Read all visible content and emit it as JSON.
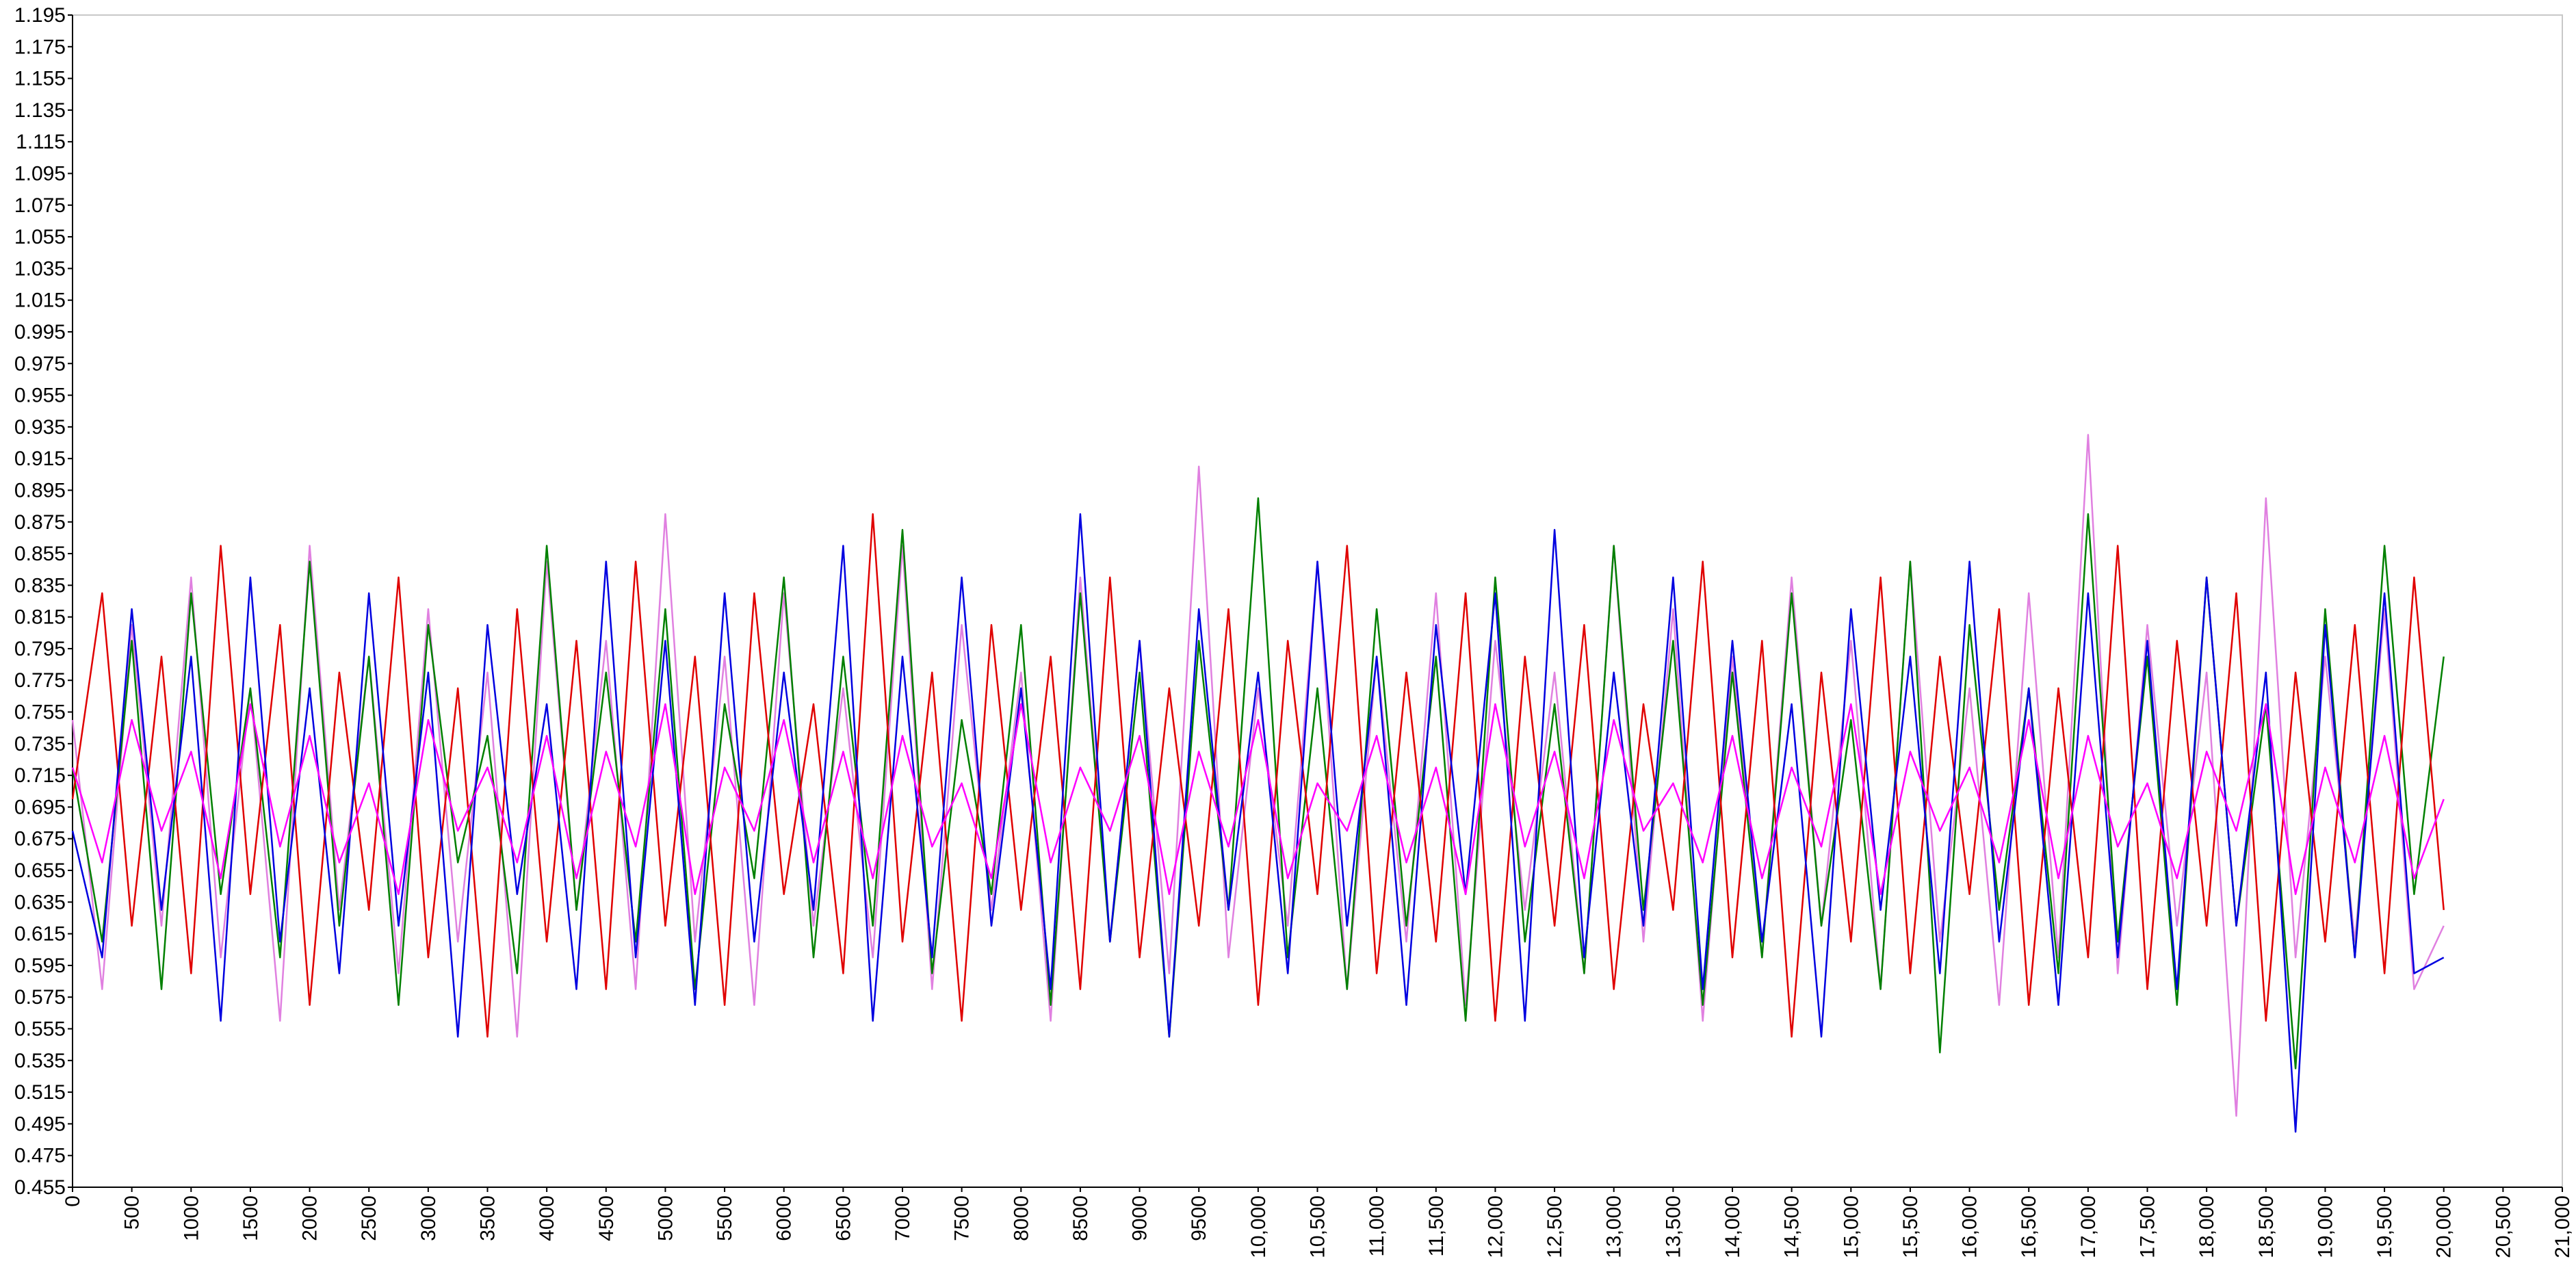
{
  "chart_data": {
    "type": "line",
    "x": [
      0,
      250,
      500,
      750,
      1000,
      1250,
      1500,
      1750,
      2000,
      2250,
      2500,
      2750,
      3000,
      3250,
      3500,
      3750,
      4000,
      4250,
      4500,
      4750,
      5000,
      5250,
      5500,
      5750,
      6000,
      6250,
      6500,
      6750,
      7000,
      7250,
      7500,
      7750,
      8000,
      8250,
      8500,
      8750,
      9000,
      9250,
      9500,
      9750,
      10000,
      10250,
      10500,
      10750,
      11000,
      11250,
      11500,
      11750,
      12000,
      12250,
      12500,
      12750,
      13000,
      13250,
      13500,
      13750,
      14000,
      14250,
      14500,
      14750,
      15000,
      15250,
      15500,
      15750,
      16000,
      16250,
      16500,
      16750,
      17000,
      17250,
      17500,
      17750,
      18000,
      18250,
      18500,
      18750,
      19000,
      19250,
      19500,
      19750,
      20000
    ],
    "series": [
      {
        "color": "#e080e0",
        "values": [
          0.75,
          0.58,
          0.81,
          0.62,
          0.84,
          0.6,
          0.77,
          0.56,
          0.86,
          0.63,
          0.79,
          0.59,
          0.82,
          0.61,
          0.78,
          0.55,
          0.85,
          0.63,
          0.8,
          0.58,
          0.88,
          0.61,
          0.79,
          0.57,
          0.83,
          0.62,
          0.77,
          0.6,
          0.86,
          0.58,
          0.81,
          0.63,
          0.78,
          0.56,
          0.84,
          0.61,
          0.8,
          0.59,
          0.91,
          0.6,
          0.77,
          0.62,
          0.85,
          0.58,
          0.79,
          0.61,
          0.83,
          0.57,
          0.8,
          0.63,
          0.78,
          0.59,
          0.86,
          0.61,
          0.82,
          0.56,
          0.79,
          0.6,
          0.84,
          0.62,
          0.8,
          0.58,
          0.85,
          0.61,
          0.77,
          0.57,
          0.83,
          0.6,
          0.93,
          0.59,
          0.81,
          0.62,
          0.78,
          0.5,
          0.89,
          0.6,
          0.79,
          0.61,
          0.82,
          0.58,
          0.62
        ]
      },
      {
        "color": "#008000",
        "values": [
          0.72,
          0.61,
          0.8,
          0.58,
          0.83,
          0.64,
          0.77,
          0.6,
          0.85,
          0.62,
          0.79,
          0.57,
          0.81,
          0.66,
          0.74,
          0.59,
          0.86,
          0.63,
          0.78,
          0.61,
          0.82,
          0.58,
          0.76,
          0.65,
          0.84,
          0.6,
          0.79,
          0.62,
          0.87,
          0.59,
          0.75,
          0.64,
          0.81,
          0.57,
          0.83,
          0.61,
          0.78,
          0.55,
          0.8,
          0.63,
          0.89,
          0.6,
          0.77,
          0.58,
          0.82,
          0.62,
          0.79,
          0.56,
          0.84,
          0.61,
          0.76,
          0.59,
          0.86,
          0.63,
          0.8,
          0.57,
          0.78,
          0.6,
          0.83,
          0.62,
          0.75,
          0.58,
          0.85,
          0.54,
          0.81,
          0.63,
          0.77,
          0.59,
          0.88,
          0.61,
          0.79,
          0.57,
          0.84,
          0.62,
          0.76,
          0.53,
          0.82,
          0.6,
          0.86,
          0.64,
          0.79
        ]
      },
      {
        "color": "#e00000",
        "values": [
          0.7,
          0.83,
          0.62,
          0.79,
          0.59,
          0.86,
          0.64,
          0.81,
          0.57,
          0.78,
          0.63,
          0.84,
          0.6,
          0.77,
          0.55,
          0.82,
          0.61,
          0.8,
          0.58,
          0.85,
          0.62,
          0.79,
          0.57,
          0.83,
          0.64,
          0.76,
          0.59,
          0.88,
          0.61,
          0.78,
          0.56,
          0.81,
          0.63,
          0.79,
          0.58,
          0.84,
          0.6,
          0.77,
          0.62,
          0.82,
          0.57,
          0.8,
          0.64,
          0.86,
          0.59,
          0.78,
          0.61,
          0.83,
          0.56,
          0.79,
          0.62,
          0.81,
          0.58,
          0.76,
          0.63,
          0.85,
          0.6,
          0.8,
          0.55,
          0.78,
          0.61,
          0.84,
          0.59,
          0.79,
          0.64,
          0.82,
          0.57,
          0.77,
          0.6,
          0.86,
          0.58,
          0.8,
          0.62,
          0.83,
          0.56,
          0.78,
          0.61,
          0.81,
          0.59,
          0.84,
          0.63
        ]
      },
      {
        "color": "#0000e0",
        "values": [
          0.68,
          0.6,
          0.82,
          0.63,
          0.79,
          0.56,
          0.84,
          0.61,
          0.77,
          0.59,
          0.83,
          0.62,
          0.78,
          0.55,
          0.81,
          0.64,
          0.76,
          0.58,
          0.85,
          0.6,
          0.8,
          0.57,
          0.83,
          0.61,
          0.78,
          0.63,
          0.86,
          0.56,
          0.79,
          0.6,
          0.84,
          0.62,
          0.77,
          0.58,
          0.88,
          0.61,
          0.8,
          0.55,
          0.82,
          0.63,
          0.78,
          0.59,
          0.85,
          0.62,
          0.79,
          0.57,
          0.81,
          0.64,
          0.83,
          0.56,
          0.87,
          0.6,
          0.78,
          0.62,
          0.84,
          0.58,
          0.8,
          0.61,
          0.76,
          0.55,
          0.82,
          0.63,
          0.79,
          0.59,
          0.85,
          0.61,
          0.77,
          0.57,
          0.83,
          0.6,
          0.8,
          0.58,
          0.84,
          0.62,
          0.78,
          0.49,
          0.81,
          0.6,
          0.83,
          0.59,
          0.6
        ]
      },
      {
        "color": "#ff00ff",
        "values": [
          0.72,
          0.66,
          0.75,
          0.68,
          0.73,
          0.65,
          0.76,
          0.67,
          0.74,
          0.66,
          0.71,
          0.64,
          0.75,
          0.68,
          0.72,
          0.66,
          0.74,
          0.65,
          0.73,
          0.67,
          0.76,
          0.64,
          0.72,
          0.68,
          0.75,
          0.66,
          0.73,
          0.65,
          0.74,
          0.67,
          0.71,
          0.65,
          0.76,
          0.66,
          0.72,
          0.68,
          0.74,
          0.64,
          0.73,
          0.67,
          0.75,
          0.65,
          0.71,
          0.68,
          0.74,
          0.66,
          0.72,
          0.64,
          0.76,
          0.67,
          0.73,
          0.65,
          0.75,
          0.68,
          0.71,
          0.66,
          0.74,
          0.65,
          0.72,
          0.67,
          0.76,
          0.64,
          0.73,
          0.68,
          0.72,
          0.66,
          0.75,
          0.65,
          0.74,
          0.67,
          0.71,
          0.65,
          0.73,
          0.68,
          0.76,
          0.64,
          0.72,
          0.66,
          0.74,
          0.65,
          0.7
        ]
      }
    ],
    "xlim": [
      0,
      21000
    ],
    "xticks": [
      0,
      500,
      1000,
      1500,
      2000,
      2500,
      3000,
      3500,
      4000,
      4500,
      5000,
      5500,
      6000,
      6500,
      7000,
      7500,
      8000,
      8500,
      9000,
      9500,
      {
        "value": 10000,
        "label": "10,000"
      },
      {
        "value": 10500,
        "label": "10,500"
      },
      {
        "value": 11000,
        "label": "11,000"
      },
      {
        "value": 11500,
        "label": "11,500"
      },
      {
        "value": 12000,
        "label": "12,000"
      },
      {
        "value": 12500,
        "label": "12,500"
      },
      {
        "value": 13000,
        "label": "13,000"
      },
      {
        "value": 13500,
        "label": "13,500"
      },
      {
        "value": 14000,
        "label": "14,000"
      },
      {
        "value": 14500,
        "label": "14,500"
      },
      {
        "value": 15000,
        "label": "15,000"
      },
      {
        "value": 15500,
        "label": "15,500"
      },
      {
        "value": 16000,
        "label": "16,000"
      },
      {
        "value": 16500,
        "label": "16,500"
      },
      {
        "value": 17000,
        "label": "17,000"
      },
      {
        "value": 17500,
        "label": "17,500"
      },
      {
        "value": 18000,
        "label": "18,000"
      },
      {
        "value": 18500,
        "label": "18,500"
      },
      {
        "value": 19000,
        "label": "19,000"
      },
      {
        "value": 19500,
        "label": "19,500"
      },
      {
        "value": 20000,
        "label": "20,000"
      },
      {
        "value": 20500,
        "label": "20,500"
      },
      {
        "value": 21000,
        "label": "21,000"
      }
    ],
    "ylim": [
      0.455,
      1.195
    ],
    "yticks": [
      0.455,
      0.475,
      0.495,
      0.515,
      0.535,
      0.555,
      0.575,
      0.595,
      0.615,
      0.635,
      0.655,
      0.675,
      0.695,
      0.715,
      0.735,
      0.755,
      0.775,
      0.795,
      0.815,
      0.835,
      0.855,
      0.875,
      0.895,
      0.915,
      0.935,
      0.955,
      0.975,
      0.995,
      1.015,
      1.035,
      1.055,
      1.075,
      1.095,
      1.115,
      1.135,
      1.155,
      1.175,
      1.195
    ],
    "grid": false
  }
}
